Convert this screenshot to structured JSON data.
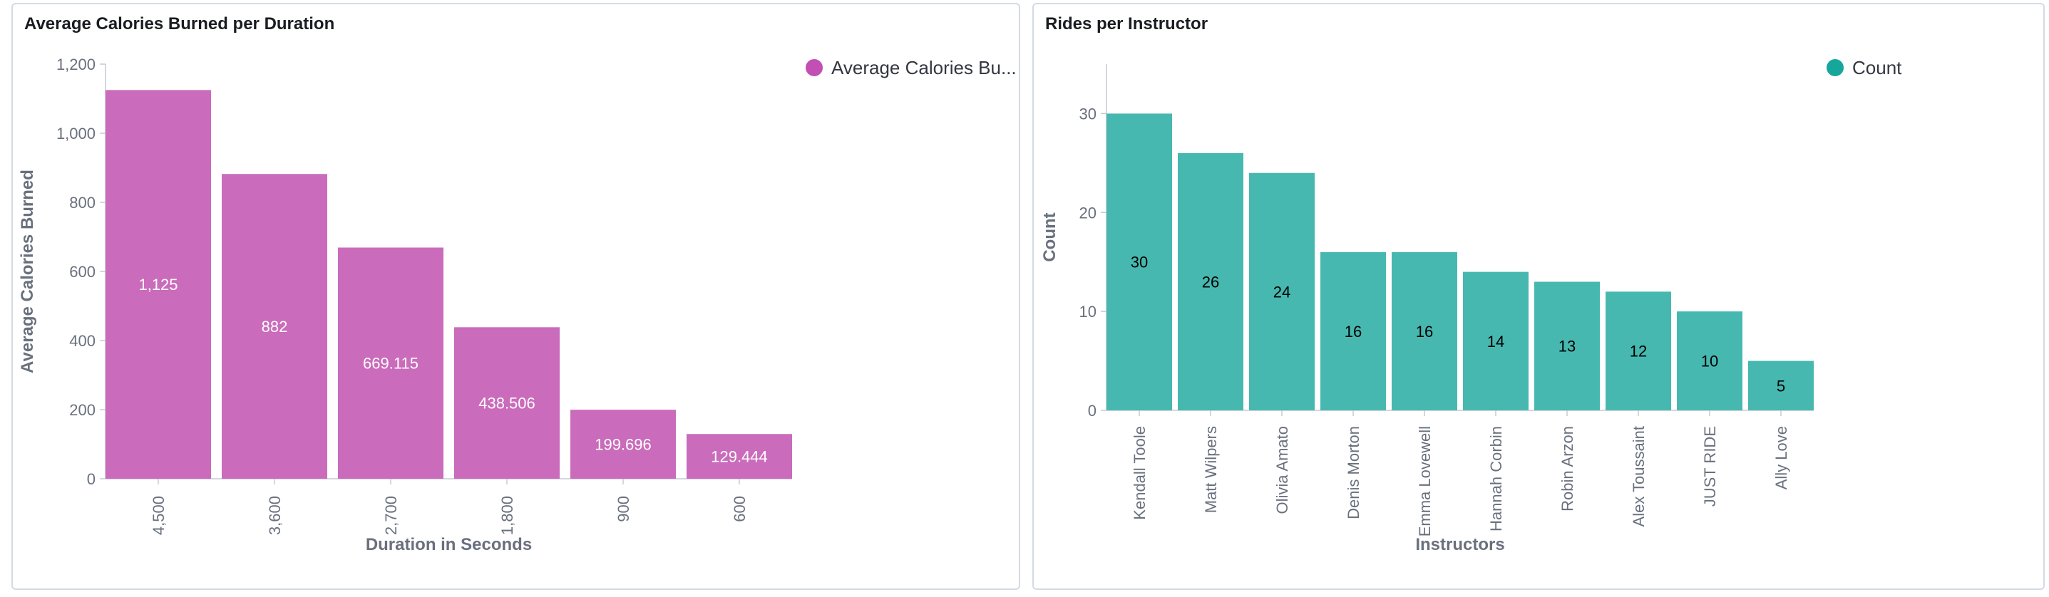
{
  "panels": [
    {
      "title": "Average Calories Burned per Duration",
      "legend": "Average Calories Bu...",
      "accent": "#ca6bbb",
      "legend_color": "#c14fb4",
      "label_color": "#ffffff"
    },
    {
      "title": "Rides per Instructor",
      "legend": "Count",
      "accent": "#47b8b0",
      "legend_color": "#16a69b",
      "label_color": "#000000"
    }
  ],
  "chart_data": [
    {
      "type": "bar",
      "categories": [
        "4,500",
        "3,600",
        "2,700",
        "1,800",
        "900",
        "600"
      ],
      "values": [
        1125,
        882,
        669.115,
        438.506,
        199.696,
        129.444
      ],
      "data_labels": [
        "1,125",
        "882",
        "669.115",
        "438.506",
        "199.696",
        "129.444"
      ],
      "xlabel": "Duration in Seconds",
      "ylabel": "Average Calories Burned",
      "ylim": [
        0,
        1200
      ],
      "yticks": [
        0,
        200,
        400,
        600,
        800,
        1000,
        1200
      ],
      "ytick_labels": [
        "0",
        "200",
        "400",
        "600",
        "800",
        "1,000",
        "1,200"
      ],
      "series": [
        {
          "name": "Average Calories Bu...",
          "values": [
            1125,
            882,
            669.115,
            438.506,
            199.696,
            129.444
          ]
        }
      ],
      "legend_position": "top-right",
      "grid": false
    },
    {
      "type": "bar",
      "categories": [
        "Kendall Toole",
        "Matt Wilpers",
        "Olivia Amato",
        "Denis Morton",
        "Emma Lovewell",
        "Hannah Corbin",
        "Robin Arzon",
        "Alex Toussaint",
        "JUST RIDE",
        "Ally Love"
      ],
      "values": [
        30,
        26,
        24,
        16,
        16,
        14,
        13,
        12,
        10,
        5
      ],
      "data_labels": [
        "30",
        "26",
        "24",
        "16",
        "16",
        "14",
        "13",
        "12",
        "10",
        "5"
      ],
      "xlabel": "Instructors",
      "ylabel": "Count",
      "ylim": [
        0,
        35
      ],
      "yticks": [
        0,
        10,
        20,
        30
      ],
      "ytick_labels": [
        "0",
        "10",
        "20",
        "30"
      ],
      "series": [
        {
          "name": "Count",
          "values": [
            30,
            26,
            24,
            16,
            16,
            14,
            13,
            12,
            10,
            5
          ]
        }
      ],
      "legend_position": "top-right",
      "grid": false
    }
  ]
}
